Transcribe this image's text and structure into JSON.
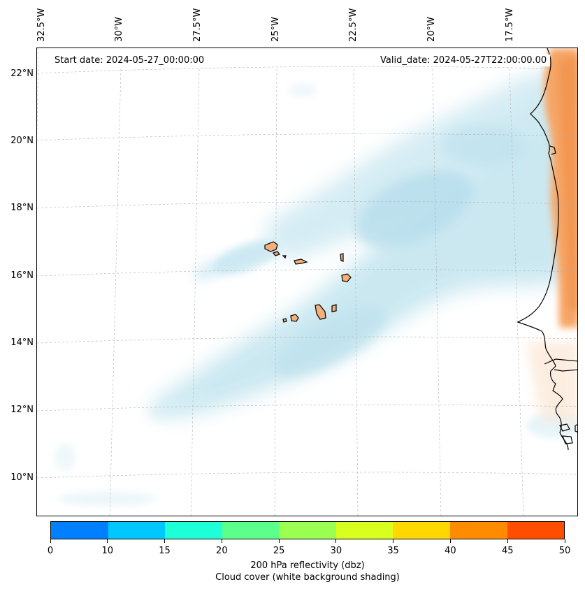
{
  "map": {
    "start_date": "Start date: 2024-05-27_00:00:00",
    "valid_date": "Valid_date: 2024-05-27T22:00:00.00",
    "longitude_labels": [
      "32.5°W",
      "30°W",
      "27.5°W",
      "25°W",
      "22.5°W",
      "20°W",
      "17.5°W"
    ],
    "latitude_labels": [
      "22°N",
      "20°N",
      "18°N",
      "16°N",
      "14°N",
      "12°N",
      "10°N"
    ],
    "region_features": [
      "Cabo Verde islands",
      "West African coast (Mauritania, Senegal, Gambia, Guinea-Bissau)"
    ]
  },
  "colorbar": {
    "ticks": [
      "0",
      "10",
      "15",
      "20",
      "25",
      "30",
      "35",
      "40",
      "45",
      "50"
    ],
    "colors": [
      "#0080ff",
      "#00c8ff",
      "#1effd8",
      "#5cff8a",
      "#9aff50",
      "#d8ff1e",
      "#ffd800",
      "#ff8c00",
      "#ff4e00"
    ],
    "title_line1": "200 hPa reflectivity (dbz)",
    "title_line2": "Cloud cover (white background shading)"
  }
}
